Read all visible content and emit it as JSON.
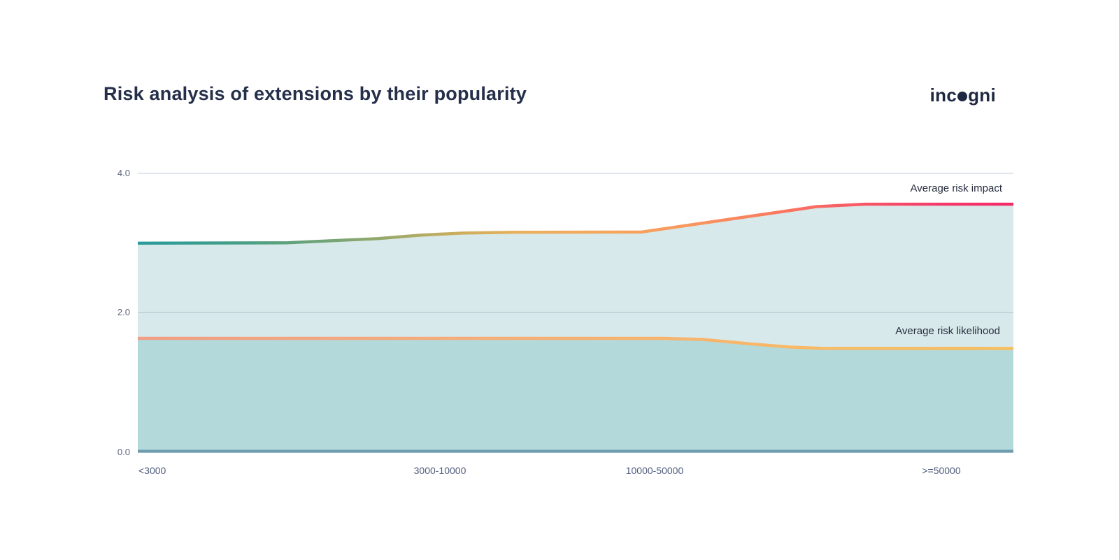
{
  "header": {
    "title": "Risk analysis of extensions by their popularity",
    "logo": {
      "prefix": "inc",
      "suffix": "gni"
    }
  },
  "chart_data": {
    "type": "area",
    "title": "Risk analysis of extensions by their popularity",
    "xlabel": "",
    "ylabel": "",
    "categories": [
      "<3000",
      "3000-10000",
      "10000-50000",
      ">=50000"
    ],
    "series": [
      {
        "name": "Average risk impact",
        "values": [
          3.0,
          3.15,
          3.2,
          3.55
        ],
        "area_fill": "#d7e9ea",
        "gradient": [
          [
            0,
            "#2a9a9c"
          ],
          [
            0.1,
            "#3f9e88"
          ],
          [
            0.2,
            "#6ba377"
          ],
          [
            0.28,
            "#95a96a"
          ],
          [
            0.36,
            "#c9ad5d"
          ],
          [
            0.44,
            "#ebb05c"
          ],
          [
            0.52,
            "#f4a85d"
          ],
          [
            0.62,
            "#f89a5e"
          ],
          [
            0.72,
            "#fa7c5f"
          ],
          [
            0.82,
            "#f85a66"
          ],
          [
            0.92,
            "#f4386a"
          ],
          [
            1,
            "#f32a68"
          ]
        ],
        "points": [
          [
            0,
            2.995
          ],
          [
            0.17,
            3.0
          ],
          [
            0.274,
            3.06
          ],
          [
            0.322,
            3.11
          ],
          [
            0.37,
            3.14
          ],
          [
            0.43,
            3.152
          ],
          [
            0.575,
            3.155
          ],
          [
            0.775,
            3.52
          ],
          [
            0.83,
            3.555
          ],
          [
            1,
            3.555
          ]
        ]
      },
      {
        "name": "Average risk likelihood",
        "values": [
          1.62,
          1.62,
          1.62,
          1.48
        ],
        "area_fill": "#b3d9da",
        "gradient": [
          [
            0,
            "#f09e85"
          ],
          [
            0.3,
            "#f5aa7e"
          ],
          [
            0.6,
            "#f7b36e"
          ],
          [
            0.8,
            "#f8ba63"
          ],
          [
            1,
            "#f8bd5d"
          ]
        ],
        "points": [
          [
            0,
            1.625
          ],
          [
            0.6,
            1.625
          ],
          [
            0.645,
            1.61
          ],
          [
            0.7,
            1.545
          ],
          [
            0.745,
            1.5
          ],
          [
            0.78,
            1.482
          ],
          [
            1,
            1.48
          ]
        ]
      }
    ],
    "ylim": [
      0,
      4
    ],
    "ytick_labels": [
      "4.0",
      "2.0",
      "0.0"
    ],
    "grid_values": [
      4,
      2
    ],
    "legend_position": "right-inline",
    "grid_on": true,
    "axis_color": "#6d9cb0",
    "grid_color": "rgba(148,163,188,0.40)"
  }
}
